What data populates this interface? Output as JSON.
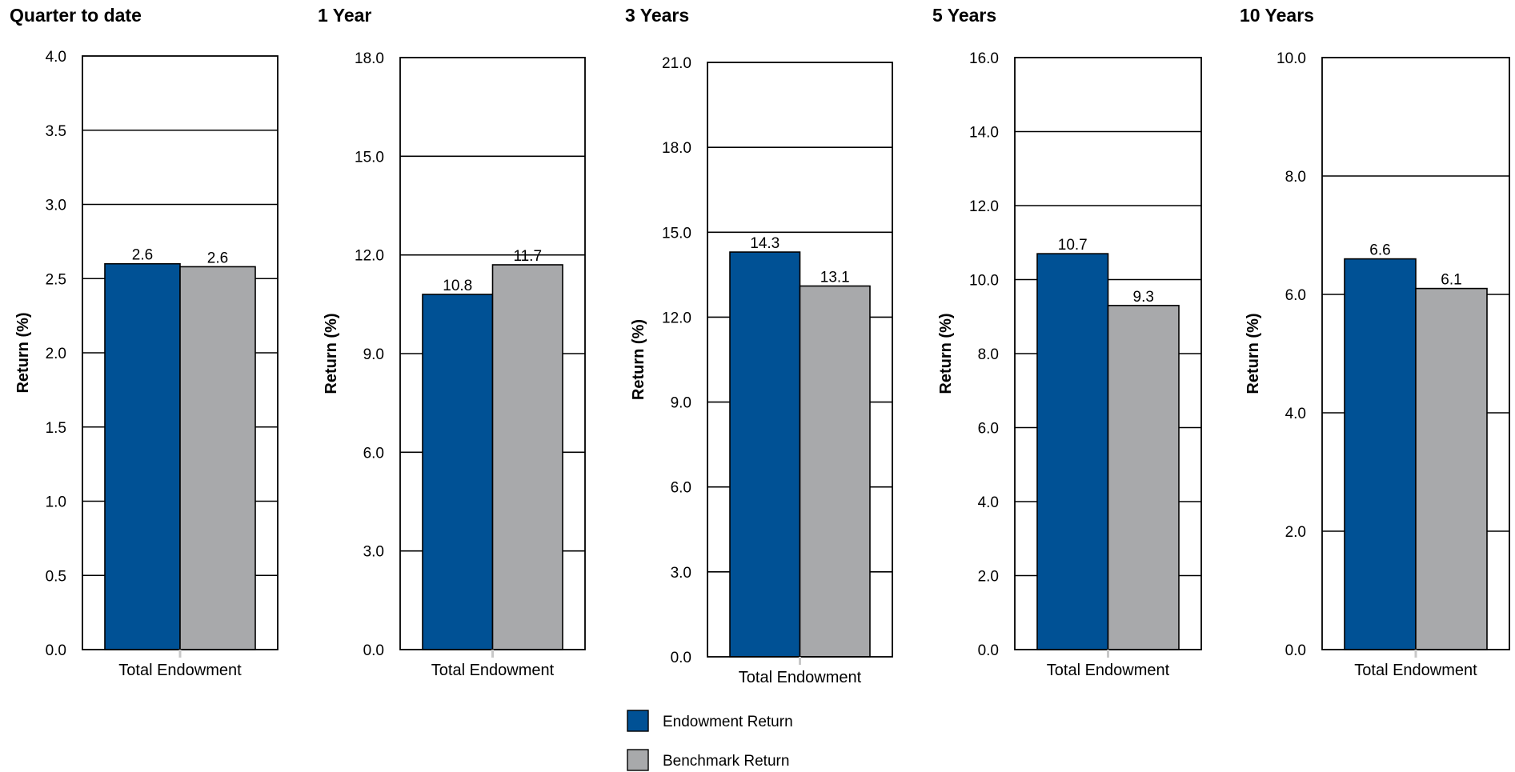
{
  "colors": {
    "endowment": "#005195",
    "benchmark": "#a8a9ab"
  },
  "legend": {
    "items": [
      {
        "name": "Endowment Return",
        "color": "#005195"
      },
      {
        "name": "Benchmark Return",
        "color": "#a8a9ab"
      }
    ]
  },
  "chart_data": [
    {
      "type": "bar",
      "title": "Quarter to date",
      "ylabel": "Return (%)",
      "categories": [
        "Total Endowment"
      ],
      "ylim": [
        0,
        4.0
      ],
      "yticks": [
        "0.0",
        "0.5",
        "1.0",
        "1.5",
        "2.0",
        "2.5",
        "3.0",
        "3.5",
        "4.0"
      ],
      "series": [
        {
          "name": "Endowment Return",
          "values": [
            2.6
          ],
          "labels": [
            "2.6"
          ]
        },
        {
          "name": "Benchmark Return",
          "values": [
            2.58
          ],
          "labels": [
            "2.6"
          ]
        }
      ]
    },
    {
      "type": "bar",
      "title": "1 Year",
      "ylabel": "Return (%)",
      "categories": [
        "Total Endowment"
      ],
      "ylim": [
        0,
        18.0
      ],
      "yticks": [
        "0.0",
        "3.0",
        "6.0",
        "9.0",
        "12.0",
        "15.0",
        "18.0"
      ],
      "series": [
        {
          "name": "Endowment Return",
          "values": [
            10.8
          ],
          "labels": [
            "10.8"
          ]
        },
        {
          "name": "Benchmark Return",
          "values": [
            11.7
          ],
          "labels": [
            "11.7"
          ]
        }
      ]
    },
    {
      "type": "bar",
      "title": "3 Years",
      "ylabel": "Return (%)",
      "categories": [
        "Total Endowment"
      ],
      "ylim": [
        0,
        21.0
      ],
      "yticks": [
        "0.0",
        "3.0",
        "6.0",
        "9.0",
        "12.0",
        "15.0",
        "18.0",
        "21.0"
      ],
      "series": [
        {
          "name": "Endowment Return",
          "values": [
            14.3
          ],
          "labels": [
            "14.3"
          ]
        },
        {
          "name": "Benchmark Return",
          "values": [
            13.1
          ],
          "labels": [
            "13.1"
          ]
        }
      ]
    },
    {
      "type": "bar",
      "title": "5 Years",
      "ylabel": "Return (%)",
      "categories": [
        "Total Endowment"
      ],
      "ylim": [
        0,
        16.0
      ],
      "yticks": [
        "0.0",
        "2.0",
        "4.0",
        "6.0",
        "8.0",
        "10.0",
        "12.0",
        "14.0",
        "16.0"
      ],
      "series": [
        {
          "name": "Endowment Return",
          "values": [
            10.7
          ],
          "labels": [
            "10.7"
          ]
        },
        {
          "name": "Benchmark Return",
          "values": [
            9.3
          ],
          "labels": [
            "9.3"
          ]
        }
      ]
    },
    {
      "type": "bar",
      "title": "10 Years",
      "ylabel": "Return (%)",
      "categories": [
        "Total Endowment"
      ],
      "ylim": [
        0,
        10.0
      ],
      "yticks": [
        "0.0",
        "2.0",
        "4.0",
        "6.0",
        "8.0",
        "10.0"
      ],
      "series": [
        {
          "name": "Endowment Return",
          "values": [
            6.6
          ],
          "labels": [
            "6.6"
          ]
        },
        {
          "name": "Benchmark Return",
          "values": [
            6.1
          ],
          "labels": [
            "6.1"
          ]
        }
      ]
    }
  ]
}
